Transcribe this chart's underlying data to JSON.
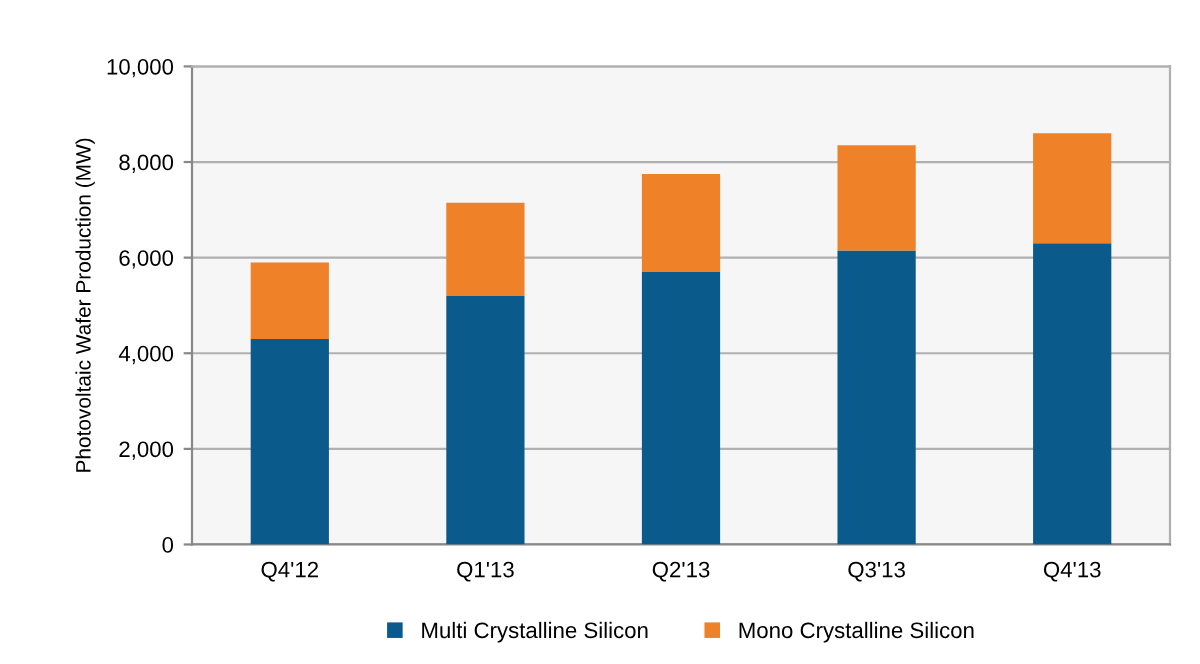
{
  "chart_data": {
    "type": "bar",
    "stacked": true,
    "ylabel": "Photovoltaic Wafer Production (MW)",
    "categories": [
      "Q4'12",
      "Q1'13",
      "Q2'13",
      "Q3'13",
      "Q4'13"
    ],
    "series": [
      {
        "name": "Multi Crystalline Silicon",
        "color": "#0b5a8c",
        "values": [
          4300,
          5200,
          5700,
          6150,
          6300
        ]
      },
      {
        "name": "Mono Crystalline Silicon",
        "color": "#ef8229",
        "values": [
          1600,
          1950,
          2050,
          2200,
          2300
        ]
      }
    ],
    "ylim": [
      0,
      10000
    ],
    "yticks": [
      {
        "value": 0,
        "label": "0"
      },
      {
        "value": 2000,
        "label": "2,000"
      },
      {
        "value": 4000,
        "label": "4,000"
      },
      {
        "value": 6000,
        "label": "6,000"
      },
      {
        "value": 8000,
        "label": "8,000"
      },
      {
        "value": 10000,
        "label": "10,000"
      }
    ],
    "grid": "y",
    "legend": "bottom"
  }
}
